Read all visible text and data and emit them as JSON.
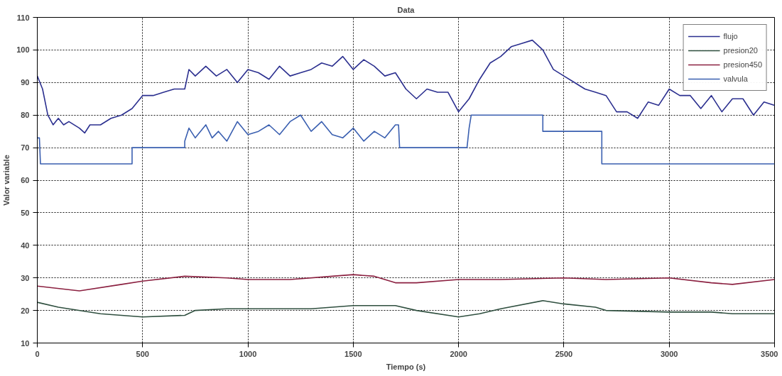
{
  "chart_data": {
    "type": "line",
    "title": "Data",
    "xlabel": "Tiempo (s)",
    "ylabel": "Valor variable",
    "xlim": [
      0,
      3500
    ],
    "ylim": [
      10,
      110
    ],
    "xticks": [
      0,
      500,
      1000,
      1500,
      2000,
      2500,
      3000,
      3500
    ],
    "yticks": [
      10,
      20,
      30,
      40,
      50,
      60,
      70,
      80,
      90,
      100,
      110
    ],
    "grid": true,
    "legend": "top right",
    "line_style": "solid",
    "series": [
      {
        "name": "flujo",
        "color": "#2b2f8f",
        "x": [
          0,
          25,
          50,
          75,
          100,
          125,
          150,
          200,
          225,
          250,
          300,
          350,
          400,
          450,
          500,
          550,
          600,
          650,
          700,
          720,
          750,
          800,
          850,
          900,
          950,
          1000,
          1050,
          1100,
          1150,
          1200,
          1250,
          1300,
          1350,
          1400,
          1450,
          1500,
          1550,
          1600,
          1650,
          1700,
          1750,
          1800,
          1850,
          1900,
          1950,
          2000,
          2050,
          2100,
          2150,
          2200,
          2250,
          2300,
          2350,
          2400,
          2450,
          2500,
          2550,
          2600,
          2650,
          2700,
          2750,
          2800,
          2850,
          2900,
          2950,
          3000,
          3050,
          3100,
          3150,
          3200,
          3250,
          3300,
          3350,
          3400,
          3450,
          3500
        ],
        "values": [
          92,
          88,
          80,
          77,
          79,
          77,
          78,
          76,
          74.5,
          77,
          77,
          79,
          80,
          82,
          86,
          86,
          87,
          88,
          88,
          94,
          92,
          95,
          92,
          94,
          90,
          94,
          93,
          91,
          95,
          92,
          93,
          94,
          96,
          95,
          98,
          94,
          97,
          95,
          92,
          93,
          88,
          85,
          88,
          87,
          87,
          81,
          85,
          91,
          96,
          98,
          101,
          102,
          103,
          100,
          94,
          92,
          90,
          88,
          87,
          86,
          81,
          81,
          79,
          84,
          83,
          88,
          86,
          86,
          82,
          86,
          81,
          85,
          85,
          80,
          84,
          83
        ]
      },
      {
        "name": "presion20",
        "color": "#2f4f3f",
        "x": [
          0,
          100,
          300,
          500,
          700,
          750,
          900,
          1000,
          1300,
          1500,
          1700,
          1800,
          2000,
          2100,
          2200,
          2400,
          2500,
          2650,
          2700,
          3000,
          3200,
          3300,
          3500
        ],
        "values": [
          22.5,
          21,
          19,
          18,
          18.5,
          20,
          20.5,
          20.5,
          20.5,
          21.5,
          21.5,
          20,
          18,
          19,
          20.5,
          23,
          22,
          21,
          20,
          19.5,
          19.5,
          19,
          19
        ]
      },
      {
        "name": "presion450",
        "color": "#8b2040",
        "x": [
          0,
          200,
          400,
          500,
          700,
          900,
          1000,
          1200,
          1400,
          1500,
          1600,
          1700,
          1800,
          2000,
          2200,
          2500,
          2700,
          3000,
          3200,
          3300,
          3500
        ],
        "values": [
          27.5,
          26,
          28,
          29,
          30.5,
          30,
          29.5,
          29.5,
          30.5,
          31,
          30.5,
          28.5,
          28.5,
          29.5,
          29.5,
          30,
          29.5,
          30,
          28.5,
          28,
          29.5
        ]
      },
      {
        "name": "valvula",
        "color": "#3a5fb0",
        "x": [
          0,
          10,
          15,
          450,
          450,
          700,
          700,
          720,
          750,
          800,
          830,
          860,
          900,
          950,
          1000,
          1050,
          1100,
          1150,
          1200,
          1250,
          1300,
          1350,
          1400,
          1450,
          1500,
          1550,
          1600,
          1650,
          1700,
          1715,
          1720,
          2040,
          2050,
          2060,
          2400,
          2400,
          2680,
          2680,
          3500
        ],
        "values": [
          73,
          73,
          65,
          65,
          70,
          70,
          72,
          76,
          73,
          77,
          73,
          75,
          72,
          78,
          74,
          75,
          77,
          74,
          78,
          80,
          75,
          78,
          74,
          73,
          76,
          72,
          75,
          73,
          77,
          77,
          70,
          70,
          76,
          80,
          80,
          75,
          75,
          65,
          65
        ]
      }
    ]
  }
}
